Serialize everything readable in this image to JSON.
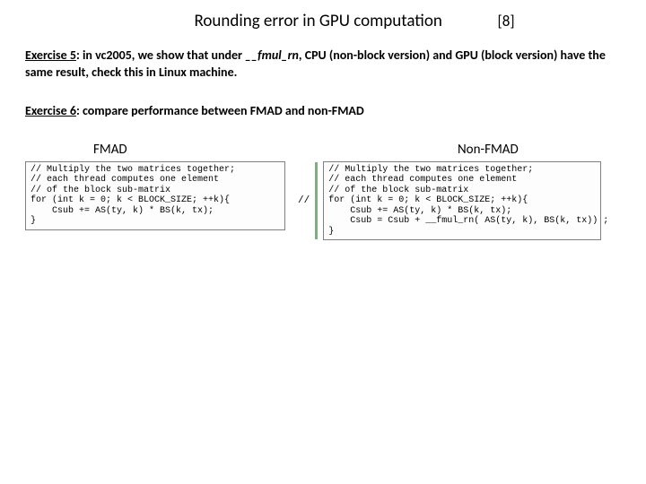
{
  "title": "Rounding error in GPU computation",
  "page_number": "[8]",
  "exercise5": {
    "label": "Exercise 5",
    "text_before": ": in vc2005, we show that under ",
    "func": "__fmul_rn",
    "text_after": ", CPU (non-block version) and GPU (block version) have the same result, check this in Linux machine."
  },
  "exercise6": {
    "label": "Exercise 6",
    "text": ": compare performance between FMAD and non-FMAD"
  },
  "columns": {
    "left_title": "FMAD",
    "right_title": "Non-FMAD"
  },
  "code_left": "// Multiply the two matrices together;\n// each thread computes one element\n// of the block sub-matrix\nfor (int k = 0; k < BLOCK_SIZE; ++k){\n    Csub += AS(ty, k) * BS(k, tx);\n}",
  "slash_marker": "//",
  "code_right": "// Multiply the two matrices together;\n// each thread computes one element\n// of the block sub-matrix\nfor (int k = 0; k < BLOCK_SIZE; ++k){\n    Csub += AS(ty, k) * BS(k, tx);\n    Csub = Csub + __fmul_rn( AS(ty, k), BS(k, tx)) ;\n}",
  "colors": {
    "text": "#000000",
    "background": "#ffffff",
    "box_border": "#808080",
    "vbar": "#7faf7f"
  },
  "fonts": {
    "body": "Calibri, Arial, sans-serif",
    "code": "Courier New, monospace",
    "title_size_pt": 19,
    "exercise_size_pt": 14,
    "code_size_pt": 10
  }
}
